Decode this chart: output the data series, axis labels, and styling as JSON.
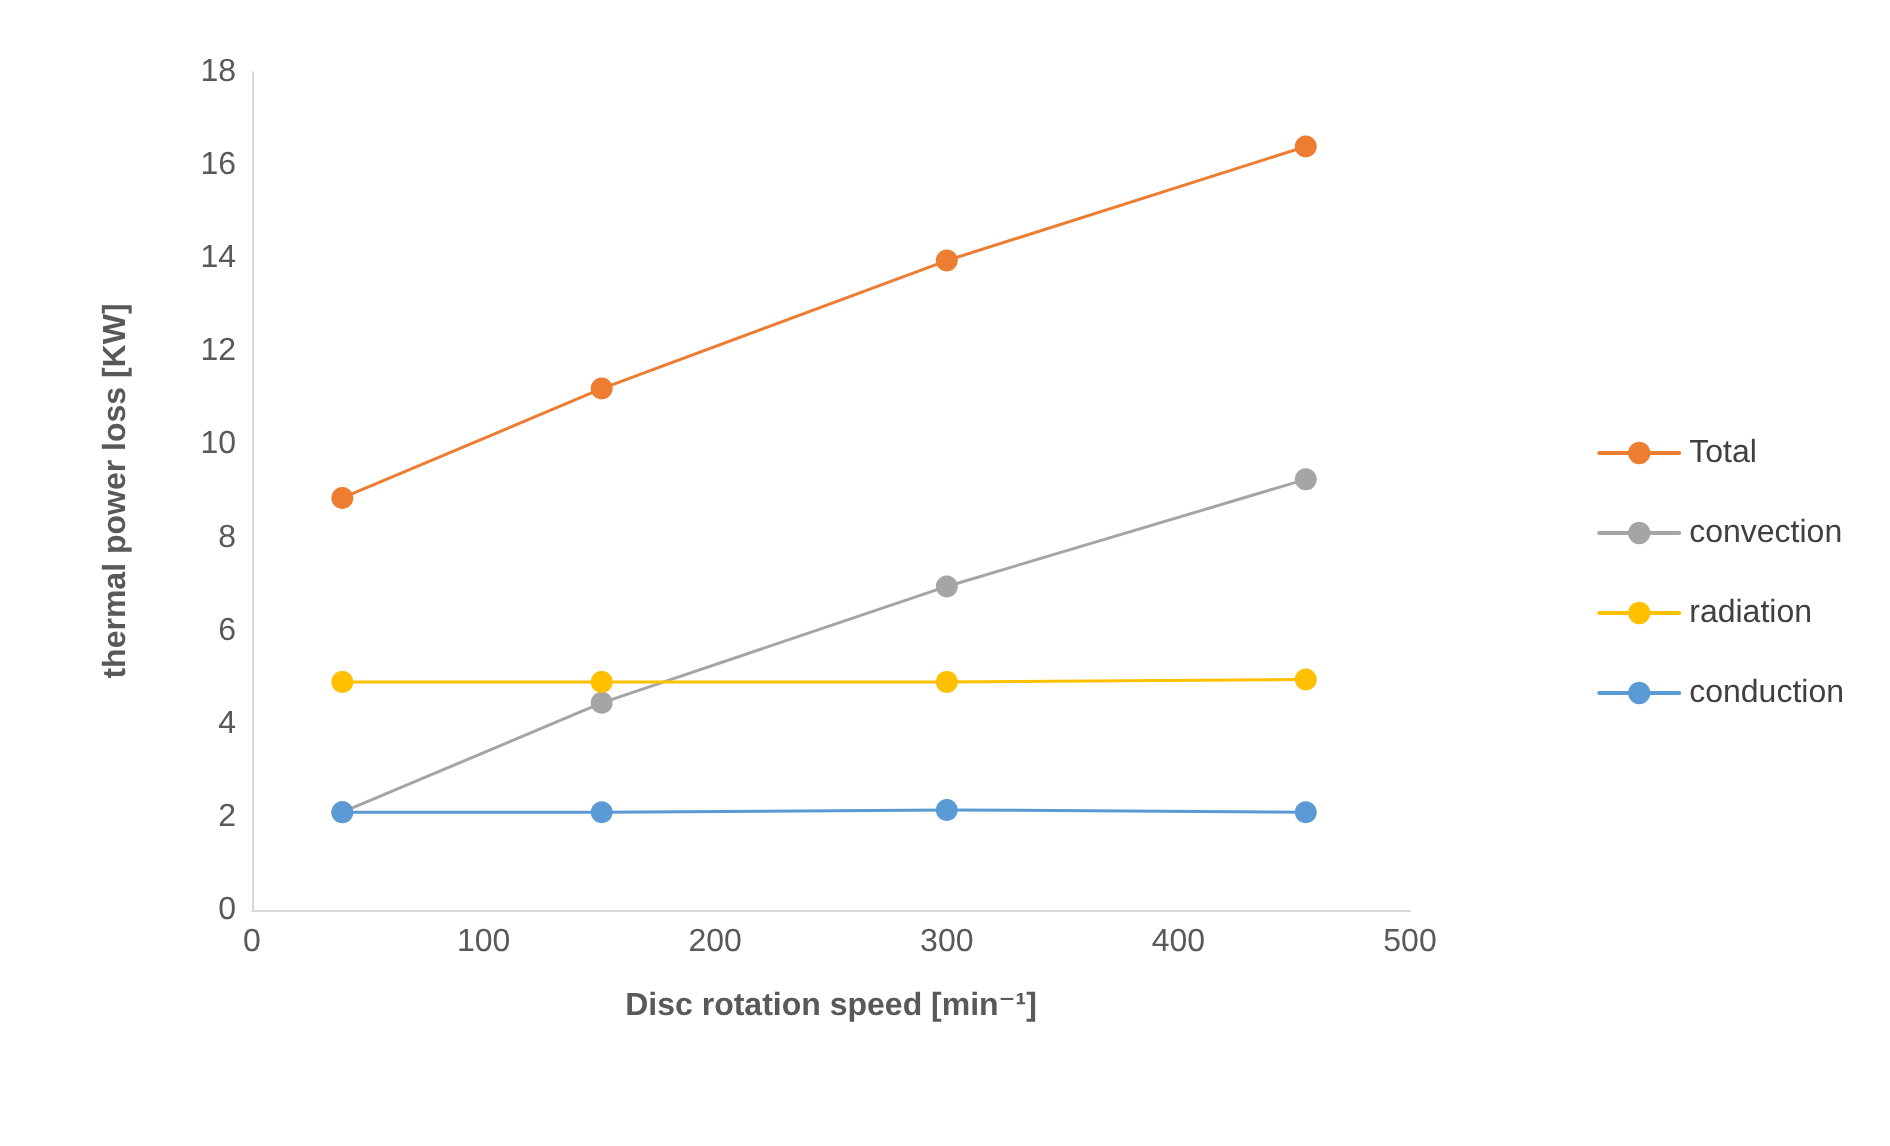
{
  "chart_data": {
    "type": "line",
    "xlabel": "Disc rotation speed [min⁻¹]",
    "ylabel": "thermal power loss [KW]",
    "x": [
      39,
      151,
      300,
      455
    ],
    "series": [
      {
        "name": "Total",
        "color": "#ed7d31",
        "values": [
          8.85,
          11.2,
          13.95,
          16.4
        ]
      },
      {
        "name": "convection",
        "color": "#a5a5a5",
        "values": [
          2.1,
          4.45,
          6.95,
          9.25
        ]
      },
      {
        "name": "radiation",
        "color": "#ffc000",
        "values": [
          4.9,
          4.9,
          4.9,
          4.95
        ]
      },
      {
        "name": "conduction",
        "color": "#5b9bd5",
        "values": [
          2.1,
          2.1,
          2.15,
          2.1
        ]
      }
    ],
    "xlim": [
      0,
      500
    ],
    "xticks": [
      0,
      100,
      200,
      300,
      400,
      500
    ],
    "ylim": [
      0,
      18
    ],
    "yticks": [
      0,
      2,
      4,
      6,
      8,
      10,
      12,
      14,
      16,
      18
    ],
    "grid": false,
    "legend": "right",
    "marker": "circle",
    "line_style": "solid"
  }
}
